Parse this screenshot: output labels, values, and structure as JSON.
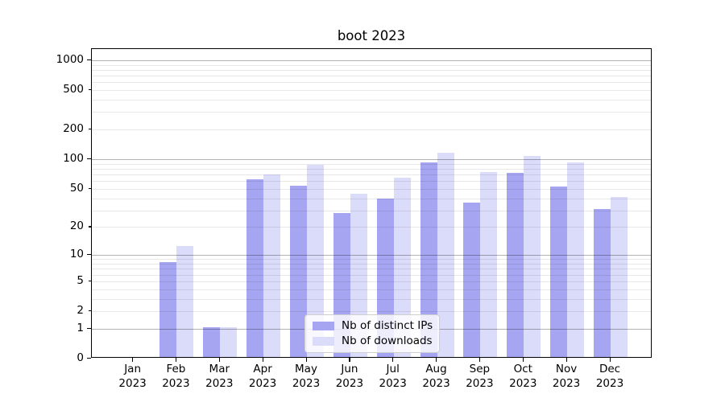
{
  "chart_data": {
    "type": "bar",
    "title": "boot 2023",
    "categories": [
      "Jan",
      "Feb",
      "Mar",
      "Apr",
      "May",
      "Jun",
      "Jul",
      "Aug",
      "Sep",
      "Oct",
      "Nov",
      "Dec"
    ],
    "category_year": "2023",
    "series": [
      {
        "name": "Nb of distinct IPs",
        "color": "#a5a5f1",
        "values": [
          0,
          8,
          1,
          60,
          52,
          27,
          38,
          90,
          35,
          70,
          51,
          30
        ]
      },
      {
        "name": "Nb of downloads",
        "color": "#dbdbfa",
        "values": [
          0,
          12,
          1,
          67,
          85,
          43,
          62,
          112,
          72,
          104,
          89,
          40
        ]
      }
    ],
    "y_scale": "log10(value+1)",
    "y_tick_values": [
      0,
      1,
      2,
      5,
      10,
      20,
      50,
      100,
      200,
      500,
      1000
    ],
    "y_major_gridlines": [
      1,
      10,
      100,
      1000
    ],
    "ylim": [
      0,
      1000
    ],
    "grid": true,
    "legend_position": "lower-center",
    "colors": {
      "grid_major": "#b0b0b0",
      "grid_minor": "#e8e8e8",
      "axis": "#000000",
      "background": "#ffffff"
    }
  }
}
